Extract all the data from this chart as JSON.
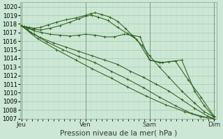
{
  "xlabel": "Pression niveau de la mer( hPa )",
  "bg_color": "#cce8d4",
  "grid_major_color": "#aaccb4",
  "grid_minor_color": "#c0dcc8",
  "line_color": "#2d6020",
  "ylim": [
    1007,
    1020.5
  ],
  "yticks": [
    1007,
    1008,
    1009,
    1010,
    1011,
    1012,
    1013,
    1014,
    1015,
    1016,
    1017,
    1018,
    1019,
    1020
  ],
  "xtick_labels": [
    "Jeu",
    "Ven",
    "Sam",
    "Dim"
  ],
  "xtick_positions": [
    0,
    1,
    2,
    3
  ],
  "xlim": [
    -0.02,
    3.05
  ],
  "lines": [
    {
      "x": [
        0.0,
        0.05,
        0.12,
        0.2,
        0.3,
        0.42,
        0.55,
        0.7,
        0.85,
        1.0,
        1.08,
        1.15,
        1.25,
        1.38,
        1.5,
        1.62,
        1.75,
        1.88,
        2.0,
        2.15,
        2.3,
        2.5,
        2.7,
        2.85,
        3.0
      ],
      "y": [
        1017.8,
        1017.7,
        1017.6,
        1017.5,
        1017.6,
        1017.9,
        1018.2,
        1018.5,
        1018.7,
        1019.0,
        1019.2,
        1019.3,
        1019.1,
        1018.8,
        1018.3,
        1017.5,
        1016.5,
        1015.5,
        1014.3,
        1013.0,
        1011.8,
        1010.2,
        1008.8,
        1007.8,
        1007.2
      ]
    },
    {
      "x": [
        0.0,
        0.08,
        0.18,
        0.3,
        0.45,
        0.6,
        0.75,
        0.9,
        1.0,
        1.1,
        1.2,
        1.35,
        1.5,
        1.65,
        1.8,
        2.0,
        2.2,
        2.4,
        2.6,
        2.8,
        3.0
      ],
      "y": [
        1017.8,
        1017.6,
        1017.4,
        1017.3,
        1017.5,
        1017.8,
        1018.2,
        1018.6,
        1018.9,
        1019.0,
        1018.8,
        1018.4,
        1017.6,
        1016.9,
        1016.2,
        1013.8,
        1013.5,
        1013.7,
        1011.5,
        1009.5,
        1007.3
      ]
    },
    {
      "x": [
        0.0,
        0.1,
        0.2,
        0.32,
        0.45,
        0.6,
        0.75,
        0.9,
        1.0,
        1.15,
        1.3,
        1.45,
        1.6,
        1.72,
        1.85,
        2.0,
        2.15,
        2.3,
        2.5,
        2.7,
        2.85,
        3.0
      ],
      "y": [
        1017.8,
        1017.5,
        1017.2,
        1017.0,
        1016.8,
        1016.7,
        1016.6,
        1016.7,
        1016.8,
        1016.7,
        1016.5,
        1016.5,
        1016.8,
        1016.7,
        1016.5,
        1013.8,
        1013.5,
        1013.6,
        1013.8,
        1010.2,
        1008.5,
        1007.2
      ]
    },
    {
      "x": [
        0.0,
        0.15,
        0.3,
        0.5,
        0.7,
        0.9,
        1.1,
        1.3,
        1.5,
        1.7,
        1.9,
        2.1,
        2.3,
        2.5,
        2.7,
        2.9,
        3.0
      ],
      "y": [
        1017.8,
        1017.0,
        1016.4,
        1015.8,
        1015.3,
        1014.8,
        1014.3,
        1013.8,
        1013.3,
        1012.5,
        1011.8,
        1011.0,
        1010.2,
        1009.2,
        1008.2,
        1007.3,
        1007.0
      ]
    },
    {
      "x": [
        0.0,
        0.2,
        0.4,
        0.65,
        0.9,
        1.15,
        1.4,
        1.65,
        1.9,
        2.15,
        2.4,
        2.65,
        2.9,
        3.0
      ],
      "y": [
        1017.8,
        1016.8,
        1015.9,
        1015.0,
        1014.2,
        1013.5,
        1012.5,
        1011.6,
        1010.6,
        1009.5,
        1008.5,
        1007.6,
        1007.1,
        1007.0
      ]
    },
    {
      "x": [
        0.0,
        0.25,
        0.55,
        0.85,
        1.1,
        1.4,
        1.65,
        1.95,
        2.25,
        2.55,
        2.8,
        3.0
      ],
      "y": [
        1017.8,
        1016.3,
        1015.0,
        1013.8,
        1012.8,
        1011.7,
        1010.7,
        1009.6,
        1008.6,
        1007.8,
        1007.2,
        1007.0
      ]
    }
  ]
}
